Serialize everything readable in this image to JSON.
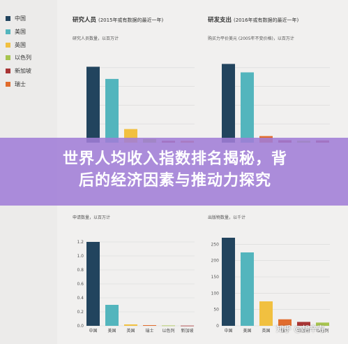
{
  "legend": [
    {
      "label": "中国",
      "color": "#22445e"
    },
    {
      "label": "美国",
      "color": "#53b5bd"
    },
    {
      "label": "英国",
      "color": "#f1c040"
    },
    {
      "label": "以色列",
      "color": "#a7c44f"
    },
    {
      "label": "新加坡",
      "color": "#a83434"
    },
    {
      "label": "瑞士",
      "color": "#e16c2d"
    }
  ],
  "banner": {
    "line1": "世界人均收入指数排名揭秘，背",
    "line2": "后的经济因素与推动力探究"
  },
  "watermark": "知乎 @胡辛寿",
  "panels": {
    "tl": {
      "title": "研究人员",
      "note": "(2015年或有数据的最近一年)",
      "subtitle": "研究人员数量，以百万计"
    },
    "tr": {
      "title": "研发支出",
      "note": "(2016年或有数据的最近一年)",
      "subtitle": "购买力平价美元 (2005年不变价格)，以百万计"
    },
    "bl": {
      "subtitle": "申请数量，以百万计"
    },
    "br": {
      "subtitle": "出版物数量，以千计"
    }
  },
  "chart_data": [
    {
      "type": "bar",
      "title": "研究人员 (2015年或有数据的最近一年)",
      "ylabel": "研究人员数量，以百万计",
      "categories": [
        "中国",
        "美国",
        "英国",
        "以色列",
        "新加坡",
        "瑞士"
      ],
      "values": [
        1.62,
        1.36,
        0.29,
        0.08,
        0.04,
        0.04
      ],
      "colors": [
        "#22445e",
        "#53b5bd",
        "#f1c040",
        "#a7c44f",
        "#a83434",
        "#e16c2d"
      ],
      "ylim": [
        0,
        2.0
      ],
      "yticks": [],
      "grid": true
    },
    {
      "type": "bar",
      "title": "研发支出 (2016年或有数据的最近一年)",
      "ylabel": "购买力平价美元 (2005年不变价格)，以百万计",
      "categories": [
        "中国",
        "美国",
        "英国",
        "以色列",
        "新加坡",
        "瑞士"
      ],
      "values": [
        420000,
        375000,
        35000,
        13000,
        10000,
        12000
      ],
      "colors": [
        "#22445e",
        "#53b5bd",
        "#e16c2d",
        "#a83434",
        "#a7c44f",
        "#a83434"
      ],
      "ylim": [
        0,
        500000
      ],
      "yticks": [],
      "grid": true
    },
    {
      "type": "bar",
      "ylabel": "申请数量，以百万计",
      "categories": [
        "中国",
        "美国",
        "英国",
        "瑞士",
        "以色列",
        "新加坡"
      ],
      "values": [
        1.2,
        0.3,
        0.02,
        0.01,
        0.005,
        0.003
      ],
      "colors": [
        "#22445e",
        "#53b5bd",
        "#f1c040",
        "#e16c2d",
        "#a7c44f",
        "#a83434"
      ],
      "ylim": [
        0,
        1.4
      ],
      "yticks": [
        0,
        0.2,
        0.4,
        0.6,
        0.8,
        1.0,
        1.2
      ],
      "ytick_labels": [
        "0.0",
        "0.2",
        "0.4",
        "0.6",
        "0.8",
        "1.0",
        "1.2"
      ],
      "grid": true
    },
    {
      "type": "bar",
      "ylabel": "出版物数量，以千计",
      "categories": [
        "中国",
        "美国",
        "英国",
        "瑞士",
        "新加坡",
        "以色列"
      ],
      "values": [
        270,
        225,
        75,
        20,
        12,
        10
      ],
      "colors": [
        "#22445e",
        "#53b5bd",
        "#f1c040",
        "#e16c2d",
        "#a83434",
        "#a7c44f"
      ],
      "ylim": [
        0,
        300
      ],
      "yticks": [
        0,
        50,
        100,
        150,
        200,
        250
      ],
      "ytick_labels": [
        "0",
        "50",
        "100",
        "150",
        "200",
        "250"
      ],
      "grid": true
    }
  ]
}
